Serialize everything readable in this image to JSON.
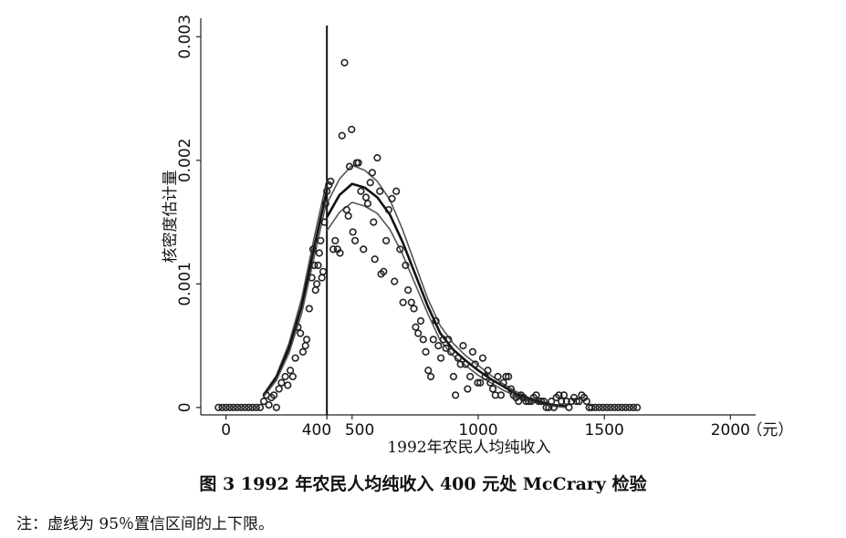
{
  "figure": {
    "caption": "图 3 1992 年农民人均纯收入 400 元处 McCrary 检验",
    "note": "注：虚线为 95％置信区间的上下限。"
  },
  "chart_data": {
    "type": "scatter",
    "xlabel": "1992年农民人均纯收入",
    "ylabel": "核密度估计量",
    "x_unit": "（元）",
    "xlim": [
      -100,
      2100
    ],
    "ylim": [
      -6e-05,
      0.00315
    ],
    "x_ticks": [
      {
        "value": 0,
        "label": "0"
      },
      {
        "value": 400,
        "label": "400"
      },
      {
        "value": 500,
        "label": "500"
      },
      {
        "value": 1000,
        "label": "1000"
      },
      {
        "value": 1500,
        "label": "1500"
      },
      {
        "value": 2000,
        "label": "2000"
      }
    ],
    "y_ticks": [
      {
        "value": 0,
        "label": "0"
      },
      {
        "value": 0.001,
        "label": "0.001"
      },
      {
        "value": 0.002,
        "label": "0.002"
      },
      {
        "value": 0.003,
        "label": "0.003"
      }
    ],
    "cutoff": 400,
    "series": [
      {
        "kind": "points",
        "points": [
          [
            -30,
            0
          ],
          [
            -15,
            0
          ],
          [
            0,
            0
          ],
          [
            15,
            0
          ],
          [
            30,
            0
          ],
          [
            45,
            0
          ],
          [
            60,
            0
          ],
          [
            75,
            0
          ],
          [
            90,
            0
          ],
          [
            105,
            0
          ],
          [
            120,
            0
          ],
          [
            135,
            0
          ],
          [
            150,
            5e-05
          ],
          [
            160,
            0.0001
          ],
          [
            170,
            2e-05
          ],
          [
            180,
            8e-05
          ],
          [
            190,
            0.0001
          ],
          [
            200,
            0
          ],
          [
            210,
            0.00015
          ],
          [
            220,
            0.0002
          ],
          [
            235,
            0.00025
          ],
          [
            245,
            0.00018
          ],
          [
            255,
            0.0003
          ],
          [
            265,
            0.00025
          ],
          [
            275,
            0.0004
          ],
          [
            285,
            0.00065
          ],
          [
            295,
            0.0006
          ],
          [
            305,
            0.00045
          ],
          [
            315,
            0.0005
          ],
          [
            320,
            0.00055
          ],
          [
            330,
            0.0008
          ],
          [
            340,
            0.00105
          ],
          [
            345,
            0.00128
          ],
          [
            350,
            0.00115
          ],
          [
            355,
            0.00095
          ],
          [
            360,
            0.001
          ],
          [
            365,
            0.00115
          ],
          [
            370,
            0.00125
          ],
          [
            375,
            0.00135
          ],
          [
            380,
            0.00105
          ],
          [
            385,
            0.0011
          ],
          [
            390,
            0.0015
          ],
          [
            395,
            0.00165
          ],
          [
            400,
            0.00175
          ],
          [
            408,
            0.0018
          ],
          [
            415,
            0.00183
          ],
          [
            425,
            0.00128
          ],
          [
            433,
            0.00135
          ],
          [
            442,
            0.00128
          ],
          [
            452,
            0.00125
          ],
          [
            460,
            0.0022
          ],
          [
            470,
            0.00279
          ],
          [
            478,
            0.0016
          ],
          [
            485,
            0.00155
          ],
          [
            490,
            0.00195
          ],
          [
            498,
            0.00225
          ],
          [
            503,
            0.00142
          ],
          [
            512,
            0.00135
          ],
          [
            518,
            0.00198
          ],
          [
            525,
            0.00198
          ],
          [
            535,
            0.00175
          ],
          [
            545,
            0.00128
          ],
          [
            555,
            0.0017
          ],
          [
            562,
            0.00165
          ],
          [
            572,
            0.00182
          ],
          [
            580,
            0.0019
          ],
          [
            585,
            0.0015
          ],
          [
            590,
            0.0012
          ],
          [
            600,
            0.00202
          ],
          [
            610,
            0.00175
          ],
          [
            615,
            0.00108
          ],
          [
            625,
            0.0011
          ],
          [
            635,
            0.00135
          ],
          [
            645,
            0.0016
          ],
          [
            658,
            0.00169
          ],
          [
            668,
            0.00102
          ],
          [
            675,
            0.00175
          ],
          [
            690,
            0.00128
          ],
          [
            702,
            0.00085
          ],
          [
            712,
            0.00115
          ],
          [
            722,
            0.00095
          ],
          [
            735,
            0.00085
          ],
          [
            745,
            0.0008
          ],
          [
            752,
            0.00065
          ],
          [
            762,
            0.0006
          ],
          [
            772,
            0.0007
          ],
          [
            782,
            0.00055
          ],
          [
            792,
            0.00045
          ],
          [
            802,
            0.0003
          ],
          [
            812,
            0.00025
          ],
          [
            822,
            0.00055
          ],
          [
            832,
            0.0007
          ],
          [
            842,
            0.0005
          ],
          [
            852,
            0.0004
          ],
          [
            862,
            0.00055
          ],
          [
            872,
            0.00048
          ],
          [
            882,
            0.00055
          ],
          [
            892,
            0.00045
          ],
          [
            902,
            0.00025
          ],
          [
            910,
            0.0001
          ],
          [
            920,
            0.0004
          ],
          [
            930,
            0.00035
          ],
          [
            940,
            0.0005
          ],
          [
            950,
            0.00035
          ],
          [
            958,
            0.00015
          ],
          [
            968,
            0.00025
          ],
          [
            978,
            0.00045
          ],
          [
            988,
            0.00035
          ],
          [
            998,
            0.0002
          ],
          [
            1008,
            0.0002
          ],
          [
            1018,
            0.0004
          ],
          [
            1028,
            0.00025
          ],
          [
            1038,
            0.0003
          ],
          [
            1048,
            0.0002
          ],
          [
            1058,
            0.00015
          ],
          [
            1068,
            0.0001
          ],
          [
            1078,
            0.00025
          ],
          [
            1090,
            0.0001
          ],
          [
            1100,
            0.0002
          ],
          [
            1110,
            0.00025
          ],
          [
            1120,
            0.00025
          ],
          [
            1130,
            0.00015
          ],
          [
            1140,
            0.0001
          ],
          [
            1150,
            8e-05
          ],
          [
            1160,
            5e-05
          ],
          [
            1170,
            0.0001
          ],
          [
            1180,
            8e-05
          ],
          [
            1190,
            5e-05
          ],
          [
            1200,
            5e-05
          ],
          [
            1210,
            5e-05
          ],
          [
            1220,
            8e-05
          ],
          [
            1230,
            0.0001
          ],
          [
            1240,
            5e-05
          ],
          [
            1250,
            5e-05
          ],
          [
            1260,
            5e-05
          ],
          [
            1270,
            0
          ],
          [
            1280,
            0
          ],
          [
            1290,
            5e-05
          ],
          [
            1300,
            0
          ],
          [
            1310,
            8e-05
          ],
          [
            1320,
            0.0001
          ],
          [
            1330,
            5e-05
          ],
          [
            1340,
            0.0001
          ],
          [
            1350,
            5e-05
          ],
          [
            1360,
            0
          ],
          [
            1370,
            5e-05
          ],
          [
            1380,
            8e-05
          ],
          [
            1390,
            5e-05
          ],
          [
            1400,
            5e-05
          ],
          [
            1410,
            0.0001
          ],
          [
            1420,
            8e-05
          ],
          [
            1430,
            5e-05
          ],
          [
            1440,
            0
          ],
          [
            1450,
            0
          ],
          [
            1465,
            0
          ],
          [
            1480,
            0
          ],
          [
            1495,
            0
          ],
          [
            1510,
            0
          ],
          [
            1525,
            0
          ],
          [
            1540,
            0
          ],
          [
            1555,
            0
          ],
          [
            1570,
            0
          ],
          [
            1585,
            0
          ],
          [
            1600,
            0
          ],
          [
            1615,
            0
          ],
          [
            1630,
            0
          ]
        ]
      },
      {
        "kind": "upper",
        "segments": [
          [
            [
              150,
              0.00011
            ],
            [
              200,
              0.00026
            ],
            [
              250,
              0.00052
            ],
            [
              300,
              0.00088
            ],
            [
              350,
              0.00138
            ],
            [
              400,
              0.00184
            ]
          ],
          [
            [
              400,
              0.00165
            ],
            [
              450,
              0.00185
            ],
            [
              500,
              0.00196
            ],
            [
              550,
              0.00192
            ],
            [
              600,
              0.00183
            ],
            [
              650,
              0.00168
            ],
            [
              700,
              0.00144
            ],
            [
              750,
              0.00116
            ],
            [
              800,
              0.00088
            ],
            [
              850,
              0.00066
            ],
            [
              900,
              0.00052
            ],
            [
              950,
              0.00042
            ],
            [
              1000,
              0.00034
            ],
            [
              1050,
              0.00026
            ],
            [
              1100,
              0.00019
            ],
            [
              1150,
              0.00013
            ],
            [
              1200,
              8e-05
            ],
            [
              1250,
              5e-05
            ],
            [
              1300,
              2e-05
            ],
            [
              1350,
              1e-05
            ]
          ]
        ]
      },
      {
        "kind": "estimate",
        "segments": [
          [
            [
              150,
              0.0001
            ],
            [
              200,
              0.00024
            ],
            [
              250,
              0.00048
            ],
            [
              300,
              0.00082
            ],
            [
              350,
              0.0013
            ],
            [
              400,
              0.00176
            ]
          ],
          [
            [
              400,
              0.00154
            ],
            [
              450,
              0.00172
            ],
            [
              500,
              0.00181
            ],
            [
              550,
              0.00178
            ],
            [
              600,
              0.0017
            ],
            [
              650,
              0.00156
            ],
            [
              700,
              0.00134
            ],
            [
              750,
              0.00108
            ],
            [
              800,
              0.00082
            ],
            [
              850,
              0.0006
            ],
            [
              900,
              0.00047
            ],
            [
              950,
              0.00038
            ],
            [
              1000,
              0.0003
            ],
            [
              1050,
              0.00023
            ],
            [
              1100,
              0.00017
            ],
            [
              1150,
              0.00011
            ],
            [
              1200,
              7e-05
            ],
            [
              1250,
              4e-05
            ],
            [
              1300,
              2e-05
            ],
            [
              1350,
              1e-05
            ]
          ]
        ]
      },
      {
        "kind": "lower",
        "segments": [
          [
            [
              150,
              9e-05
            ],
            [
              200,
              0.00022
            ],
            [
              250,
              0.00044
            ],
            [
              300,
              0.00076
            ],
            [
              350,
              0.00122
            ],
            [
              400,
              0.00168
            ]
          ],
          [
            [
              400,
              0.00143
            ],
            [
              450,
              0.00158
            ],
            [
              500,
              0.00166
            ],
            [
              550,
              0.00163
            ],
            [
              600,
              0.00157
            ],
            [
              650,
              0.00144
            ],
            [
              700,
              0.00124
            ],
            [
              750,
              0.001
            ],
            [
              800,
              0.00076
            ],
            [
              850,
              0.00054
            ],
            [
              900,
              0.00042
            ],
            [
              950,
              0.00034
            ],
            [
              1000,
              0.00026
            ],
            [
              1050,
              0.0002
            ],
            [
              1100,
              0.00014
            ],
            [
              1150,
              9e-05
            ],
            [
              1200,
              5e-05
            ],
            [
              1250,
              3e-05
            ],
            [
              1300,
              1e-05
            ],
            [
              1350,
              0.0
            ]
          ]
        ]
      }
    ]
  }
}
